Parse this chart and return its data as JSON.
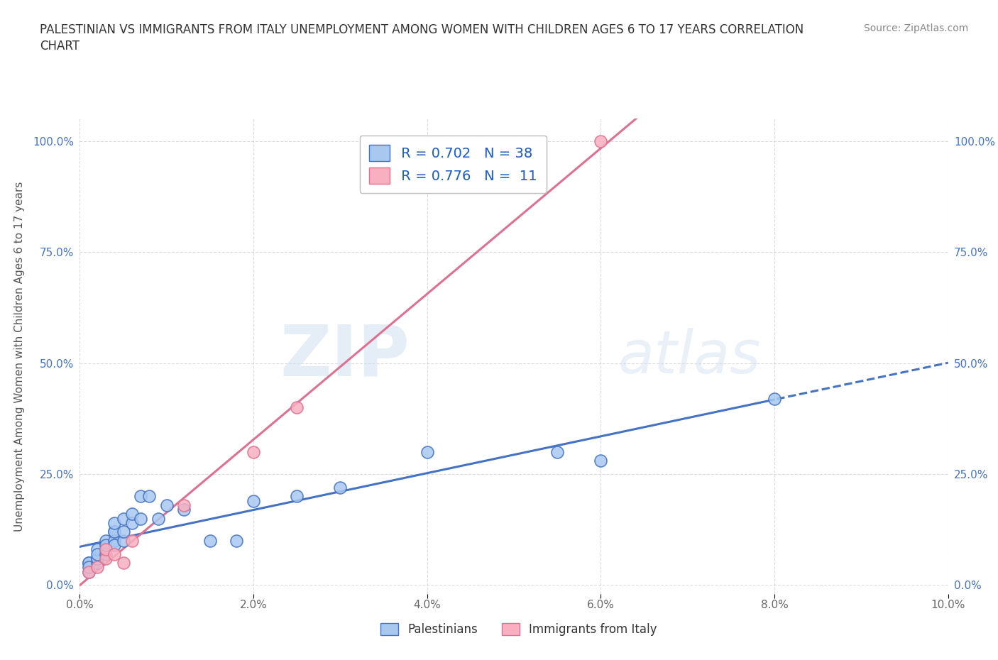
{
  "title": "PALESTINIAN VS IMMIGRANTS FROM ITALY UNEMPLOYMENT AMONG WOMEN WITH CHILDREN AGES 6 TO 17 YEARS CORRELATION\nCHART",
  "source": "Source: ZipAtlas.com",
  "ylabel": "Unemployment Among Women with Children Ages 6 to 17 years",
  "xlim": [
    0.0,
    0.1
  ],
  "ylim": [
    -0.02,
    1.05
  ],
  "xtick_labels": [
    "0.0%",
    "2.0%",
    "4.0%",
    "6.0%",
    "8.0%",
    "10.0%"
  ],
  "xtick_vals": [
    0.0,
    0.02,
    0.04,
    0.06,
    0.08,
    0.1
  ],
  "ytick_labels": [
    "0.0%",
    "25.0%",
    "50.0%",
    "75.0%",
    "100.0%"
  ],
  "ytick_vals": [
    0.0,
    0.25,
    0.5,
    0.75,
    1.0
  ],
  "palestinians_x": [
    0.001,
    0.001,
    0.001,
    0.001,
    0.002,
    0.002,
    0.002,
    0.002,
    0.002,
    0.003,
    0.003,
    0.003,
    0.003,
    0.004,
    0.004,
    0.004,
    0.004,
    0.004,
    0.005,
    0.005,
    0.005,
    0.006,
    0.006,
    0.007,
    0.007,
    0.008,
    0.009,
    0.01,
    0.012,
    0.015,
    0.018,
    0.02,
    0.025,
    0.03,
    0.04,
    0.055,
    0.06,
    0.08
  ],
  "palestinians_y": [
    0.03,
    0.05,
    0.05,
    0.04,
    0.05,
    0.06,
    0.06,
    0.08,
    0.07,
    0.1,
    0.08,
    0.07,
    0.09,
    0.12,
    0.1,
    0.09,
    0.12,
    0.14,
    0.1,
    0.12,
    0.15,
    0.14,
    0.16,
    0.15,
    0.2,
    0.2,
    0.15,
    0.18,
    0.17,
    0.1,
    0.1,
    0.19,
    0.2,
    0.22,
    0.3,
    0.3,
    0.28,
    0.42
  ],
  "italy_x": [
    0.001,
    0.002,
    0.003,
    0.003,
    0.004,
    0.005,
    0.006,
    0.012,
    0.02,
    0.025,
    0.06
  ],
  "italy_y": [
    0.03,
    0.04,
    0.06,
    0.08,
    0.07,
    0.05,
    0.1,
    0.18,
    0.3,
    0.4,
    1.0
  ],
  "palestinians_color": "#a8c8f0",
  "italy_color": "#f8b0c0",
  "palestinians_line_color": "#4472c4",
  "italy_line_color": "#e07090",
  "R_palestinians": 0.702,
  "N_palestinians": 38,
  "R_italy": 0.776,
  "N_italy": 11,
  "legend_color": "#2060c0",
  "watermark_zip": "ZIP",
  "watermark_atlas": "atlas",
  "background_color": "#ffffff",
  "grid_color": "#cccccc"
}
